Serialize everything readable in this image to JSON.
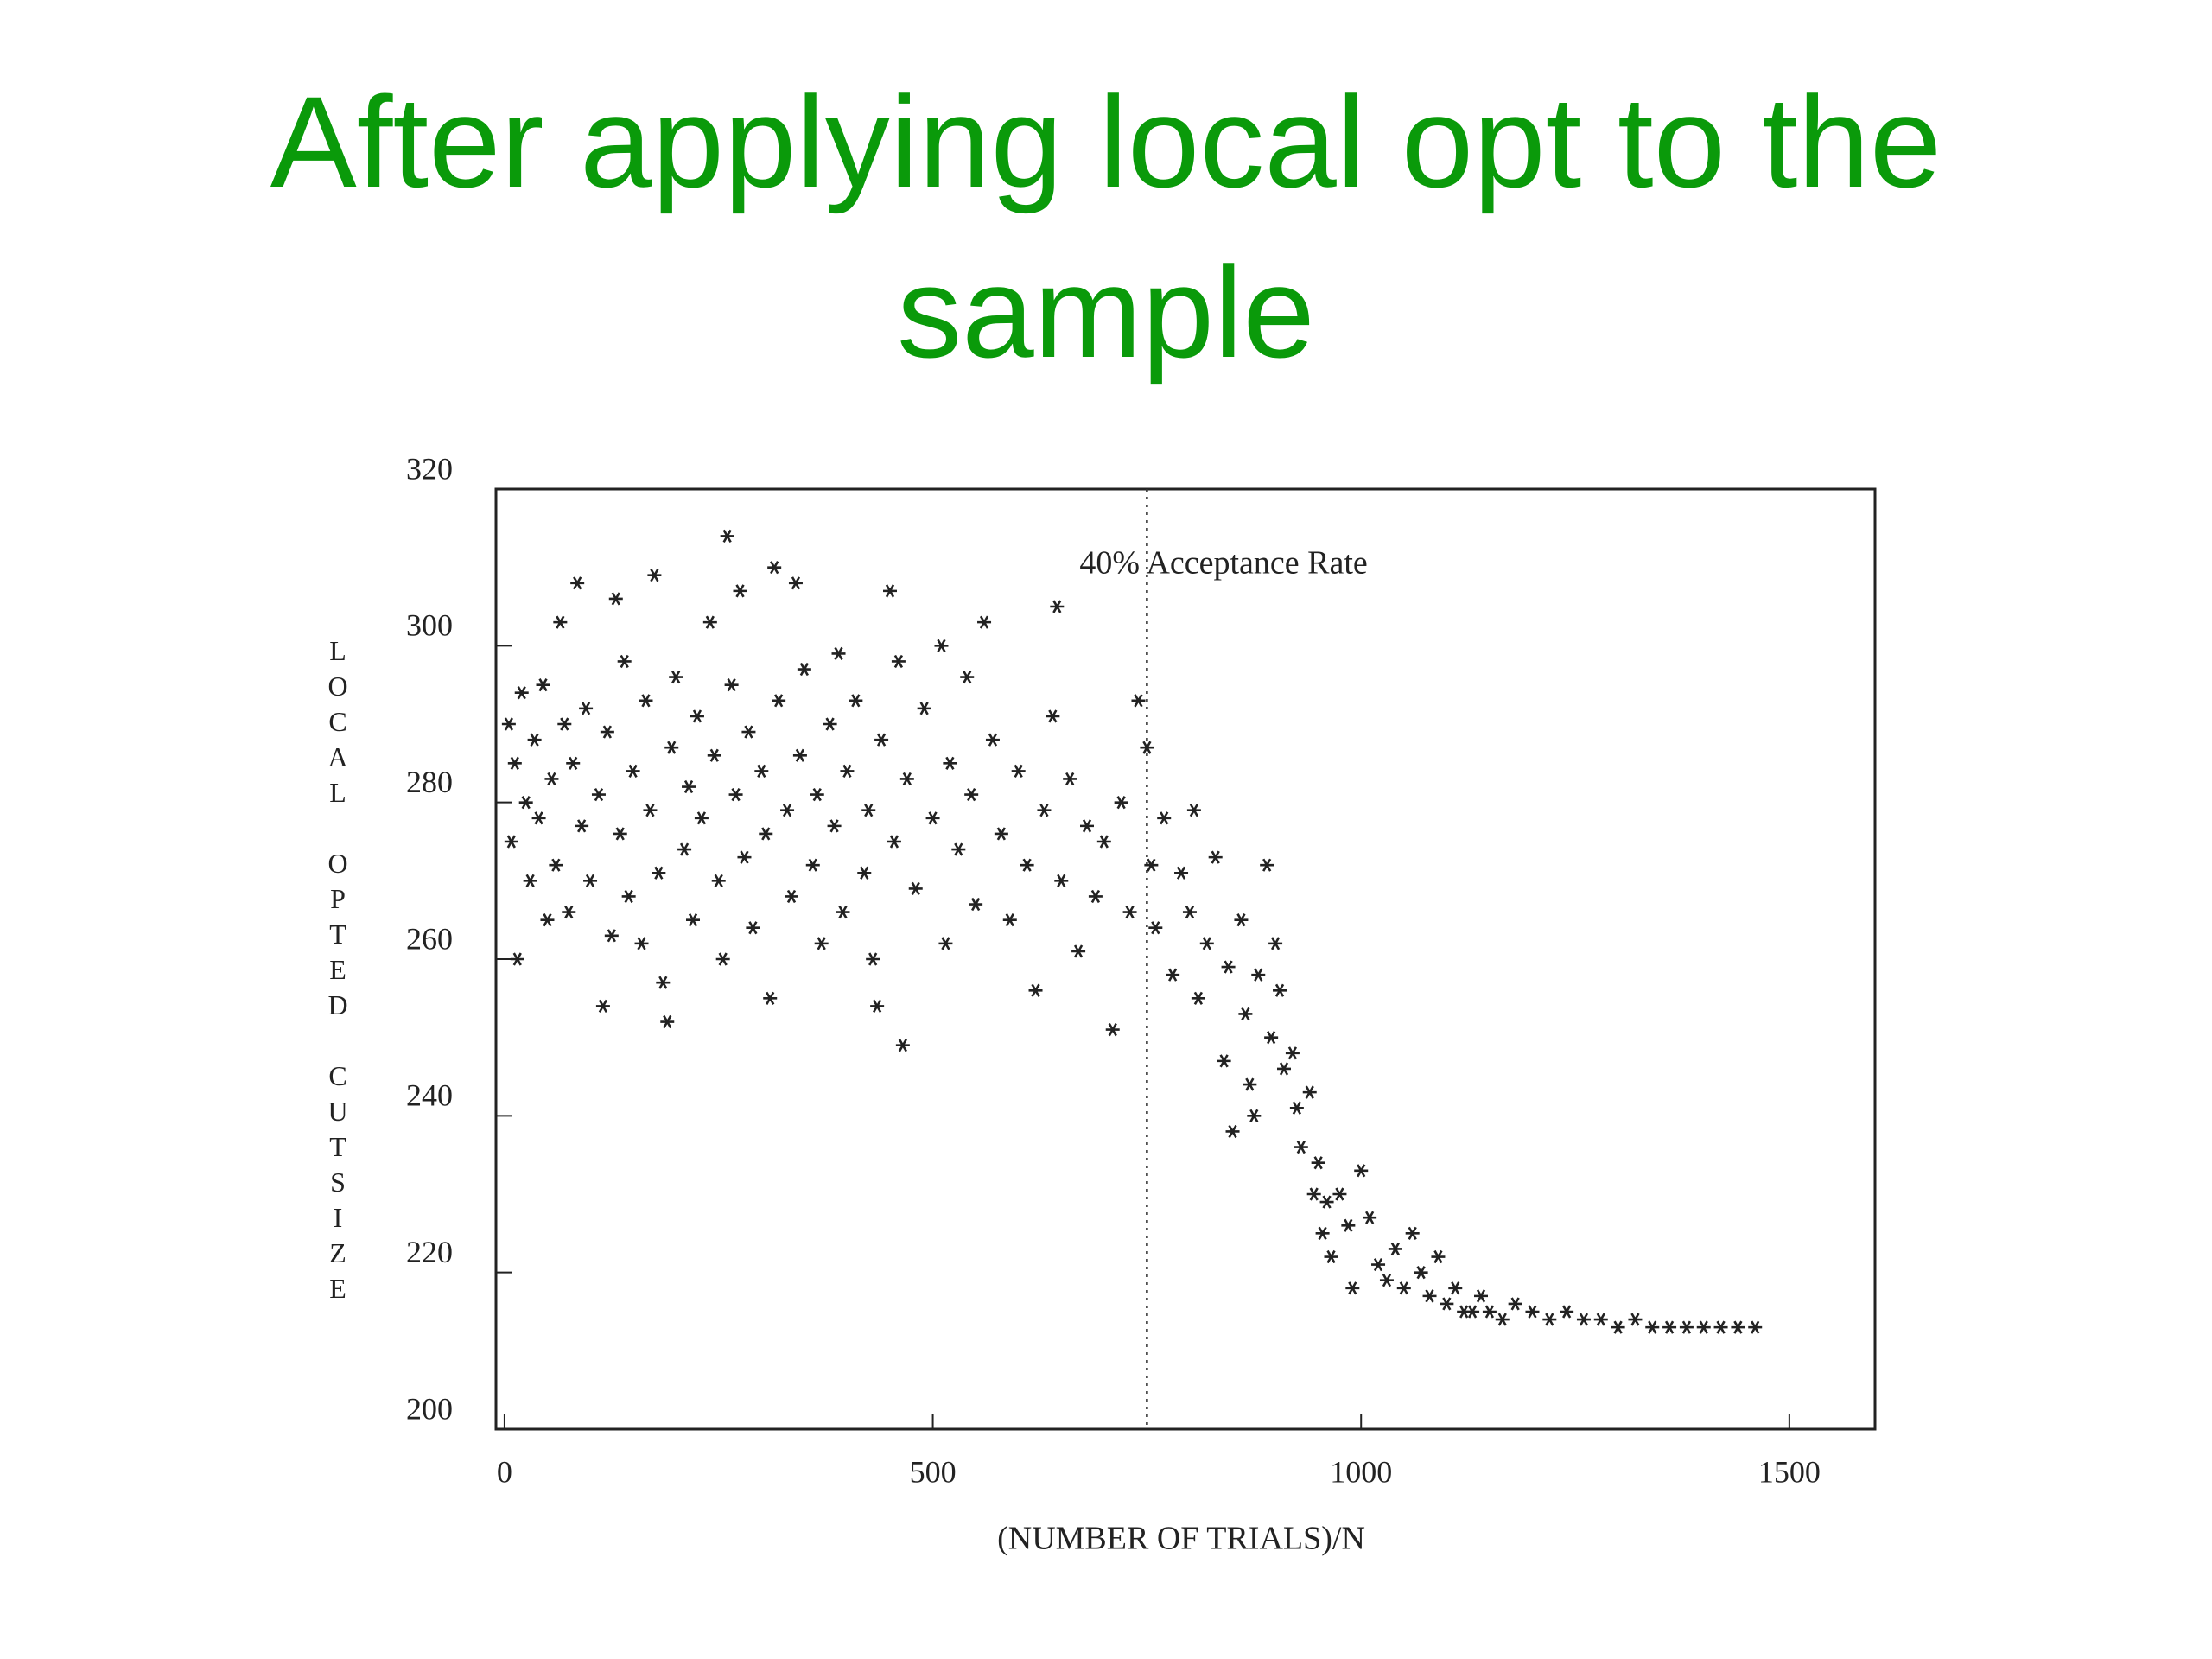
{
  "chart_data": {
    "type": "scatter",
    "title": "After applying local opt to the sample",
    "x_label": "(NUMBER OF TRIALS)/N",
    "y_label": "LOCAL OPTED CUTSIZE",
    "annotation": {
      "text": "40% Acceptance Rate",
      "x": 750
    },
    "color": "#222222",
    "xlim": [
      -10,
      1600
    ],
    "ylim": [
      200,
      320
    ],
    "xticks": [
      0,
      500,
      1000,
      1500
    ],
    "yticks": [
      200,
      220,
      240,
      260,
      280,
      300,
      320
    ],
    "x": [
      5,
      8,
      12,
      15,
      20,
      25,
      30,
      35,
      40,
      45,
      50,
      55,
      60,
      65,
      70,
      75,
      80,
      85,
      90,
      95,
      100,
      110,
      115,
      120,
      125,
      130,
      135,
      140,
      145,
      150,
      160,
      165,
      170,
      175,
      180,
      185,
      190,
      195,
      200,
      210,
      215,
      220,
      225,
      230,
      240,
      245,
      250,
      255,
      260,
      265,
      270,
      275,
      280,
      285,
      290,
      300,
      305,
      310,
      315,
      320,
      330,
      335,
      340,
      345,
      350,
      360,
      365,
      370,
      380,
      385,
      390,
      395,
      400,
      410,
      420,
      425,
      430,
      435,
      440,
      450,
      455,
      460,
      465,
      470,
      480,
      490,
      500,
      510,
      515,
      520,
      530,
      540,
      545,
      550,
      560,
      570,
      580,
      590,
      600,
      610,
      620,
      630,
      640,
      645,
      650,
      660,
      670,
      680,
      690,
      700,
      710,
      720,
      730,
      740,
      750,
      755,
      760,
      770,
      780,
      790,
      800,
      805,
      810,
      820,
      830,
      840,
      845,
      850,
      860,
      865,
      870,
      875,
      880,
      890,
      895,
      900,
      905,
      910,
      920,
      925,
      930,
      940,
      945,
      950,
      955,
      960,
      965,
      975,
      985,
      990,
      1000,
      1010,
      1020,
      1030,
      1040,
      1050,
      1060,
      1070,
      1080,
      1090,
      1100,
      1110,
      1120,
      1130,
      1140,
      1150,
      1165,
      1180,
      1200,
      1220,
      1240,
      1260,
      1280,
      1300,
      1320,
      1340,
      1360,
      1380,
      1400,
      1420,
      1440,
      1460
    ],
    "values": [
      290,
      275,
      285,
      260,
      294,
      280,
      270,
      288,
      278,
      295,
      265,
      283,
      272,
      303,
      290,
      266,
      285,
      308,
      277,
      292,
      270,
      281,
      254,
      289,
      263,
      306,
      276,
      298,
      268,
      284,
      262,
      293,
      279,
      309,
      271,
      257,
      252,
      287,
      296,
      274,
      282,
      265,
      291,
      278,
      303,
      286,
      270,
      260,
      314,
      295,
      281,
      307,
      273,
      289,
      264,
      284,
      276,
      255,
      310,
      293,
      279,
      268,
      308,
      286,
      297,
      272,
      281,
      262,
      290,
      277,
      299,
      266,
      284,
      293,
      271,
      279,
      260,
      254,
      288,
      307,
      275,
      298,
      249,
      283,
      269,
      292,
      278,
      300,
      262,
      285,
      274,
      296,
      281,
      267,
      303,
      288,
      276,
      265,
      284,
      272,
      256,
      279,
      291,
      305,
      270,
      283,
      261,
      277,
      268,
      275,
      251,
      280,
      266,
      293,
      287,
      272,
      264,
      278,
      258,
      271,
      266,
      279,
      255,
      262,
      273,
      247,
      259,
      238,
      265,
      253,
      244,
      240,
      258,
      272,
      250,
      262,
      256,
      246,
      248,
      241,
      236,
      243,
      230,
      234,
      225,
      229,
      222,
      230,
      226,
      218,
      233,
      227,
      221,
      219,
      223,
      218,
      225,
      220,
      217,
      222,
      216,
      218,
      215,
      215,
      217,
      215,
      214,
      216,
      215,
      214,
      215,
      214,
      214,
      213,
      214,
      213,
      213,
      213,
      213,
      213,
      213,
      213
    ]
  }
}
